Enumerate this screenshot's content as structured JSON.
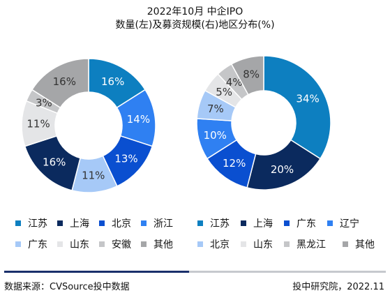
{
  "title": {
    "line1": "2022年10月  中企IPO",
    "line2": "数量(左)及募资规模(右)地区分布(%)"
  },
  "chart_data": [
    {
      "type": "pie",
      "variant": "donut",
      "categories": [
        "江苏",
        "浙江",
        "北京",
        "广东",
        "上海",
        "山东",
        "安徽",
        "其他"
      ],
      "values": [
        16,
        14,
        13,
        11,
        16,
        11,
        3,
        16
      ],
      "colors": [
        "#0d7fc0",
        "#2f80f2",
        "#0a4fd0",
        "#a6c9f7",
        "#0b2a5e",
        "#e4e5e7",
        "#c5c6c8",
        "#a5a6a8"
      ],
      "labels": [
        "16%",
        "14%",
        "13%",
        "11%",
        "16%",
        "11%",
        "3%",
        "16%"
      ],
      "label_colors": [
        "#ffffff",
        "#ffffff",
        "#ffffff",
        "#333333",
        "#ffffff",
        "#333333",
        "#333333",
        "#333333"
      ],
      "legend": [
        {
          "label": "江苏",
          "color": "#0d7fc0"
        },
        {
          "label": "上海",
          "color": "#0b2a5e"
        },
        {
          "label": "北京",
          "color": "#0a4fd0"
        },
        {
          "label": "浙江",
          "color": "#2f80f2"
        },
        {
          "label": "广东",
          "color": "#a6c9f7"
        },
        {
          "label": "山东",
          "color": "#e4e5e7"
        },
        {
          "label": "安徽",
          "color": "#c5c6c8"
        },
        {
          "label": "其他",
          "color": "#a5a6a8"
        }
      ],
      "legend_position": "bottom"
    },
    {
      "type": "pie",
      "variant": "donut",
      "categories": [
        "江苏",
        "上海",
        "广东",
        "辽宁",
        "北京",
        "山东",
        "黑龙江",
        "其他"
      ],
      "values": [
        34,
        20,
        12,
        10,
        7,
        5,
        4,
        8
      ],
      "colors": [
        "#0d7fc0",
        "#0b2a5e",
        "#0a4fd0",
        "#2f80f2",
        "#a6c9f7",
        "#e4e5e7",
        "#c5c6c8",
        "#a5a6a8"
      ],
      "labels": [
        "34%",
        "20%",
        "12%",
        "10%",
        "7%",
        "5%",
        "4%",
        "8%"
      ],
      "label_colors": [
        "#ffffff",
        "#ffffff",
        "#ffffff",
        "#ffffff",
        "#333333",
        "#333333",
        "#333333",
        "#333333"
      ],
      "legend": [
        {
          "label": "江苏",
          "color": "#0d7fc0"
        },
        {
          "label": "上海",
          "color": "#0b2a5e"
        },
        {
          "label": "广东",
          "color": "#0a4fd0"
        },
        {
          "label": "辽宁",
          "color": "#2f80f2"
        },
        {
          "label": "北京",
          "color": "#a6c9f7"
        },
        {
          "label": "山东",
          "color": "#e4e5e7"
        },
        {
          "label": "黑龙江",
          "color": "#c5c6c8"
        },
        {
          "label": "其他",
          "color": "#a5a6a8"
        }
      ],
      "legend_position": "bottom"
    }
  ],
  "footer": {
    "source": "数据来源：CVSource投中数据",
    "credit": "投中研究院，2022.11"
  },
  "accent_color": "#1a2f6b"
}
